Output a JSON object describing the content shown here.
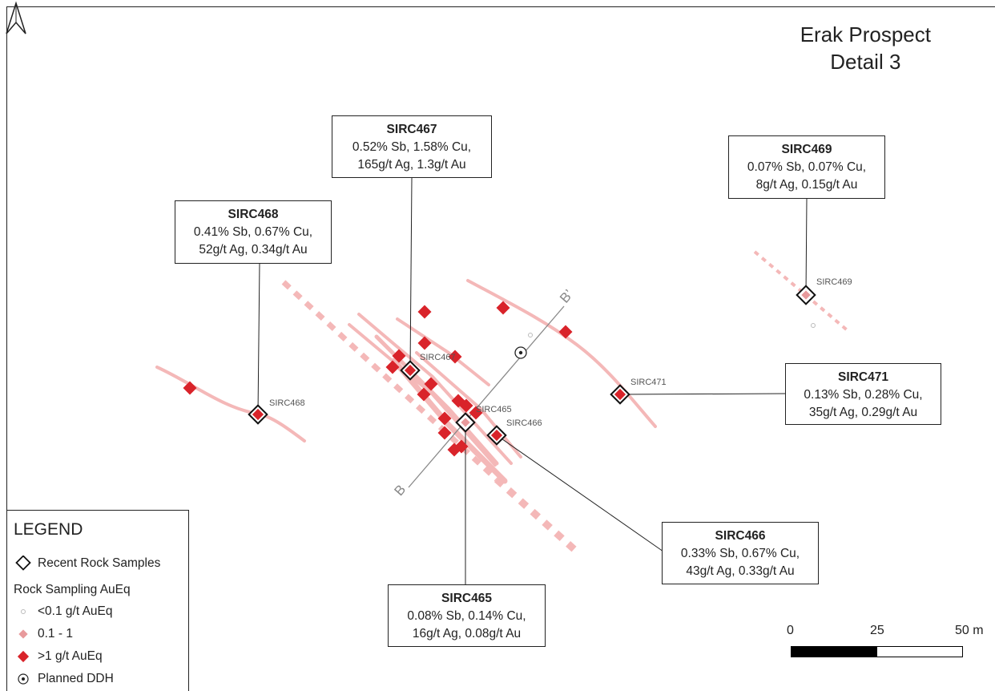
{
  "title": {
    "line1": "Erak Prospect",
    "line2": "Detail 3"
  },
  "callouts": [
    {
      "id": "SIRC467",
      "line1": "0.52% Sb, 1.58% Cu,",
      "line2": "165g/t Ag, 1.3g/t Au"
    },
    {
      "id": "SIRC468",
      "line1": "0.41% Sb, 0.67% Cu,",
      "line2": "52g/t Ag, 0.34g/t Au"
    },
    {
      "id": "SIRC469",
      "line1": "0.07% Sb, 0.07% Cu,",
      "line2": "8g/t Ag, 0.15g/t Au"
    },
    {
      "id": "SIRC471",
      "line1": "0.13% Sb, 0.28% Cu,",
      "line2": "35g/t Ag, 0.29g/t Au"
    },
    {
      "id": "SIRC466",
      "line1": "0.33% Sb, 0.67% Cu,",
      "line2": "43g/t Ag, 0.33g/t Au"
    },
    {
      "id": "SIRC465",
      "line1": "0.08% Sb, 0.14% Cu,",
      "line2": "16g/t Ag, 0.08g/t Au"
    }
  ],
  "sample_labels": {
    "sirc467": "SIRC467",
    "sirc468": "SIRC468",
    "sirc469": "SIRC469",
    "sirc471": "SIRC471",
    "sirc465": "SIRC465",
    "sirc466": "SIRC466"
  },
  "section": {
    "start": "B",
    "end": "B’"
  },
  "legend": {
    "title": "LEGEND",
    "recent": "Recent Rock Samples",
    "subtitle": "Rock Sampling AuEq",
    "low": "<0.1 g/t AuEq",
    "mid": "0.1 - 1",
    "high": ">1 g/t AuEq",
    "ddh": "Planned DDH"
  },
  "scale": {
    "t0": "0",
    "t1": "25",
    "t2": "50 m"
  },
  "colors": {
    "high": "#d9232a",
    "mid": "#e89a9c",
    "vein": "#f4b8b8",
    "frame": "#222222"
  },
  "icons": {
    "north": "north-arrow-icon"
  }
}
